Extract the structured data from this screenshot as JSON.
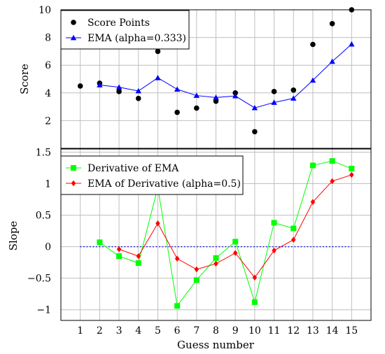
{
  "chart_data": [
    {
      "type": "line",
      "ylabel": "Score",
      "xlim": [
        0,
        16
      ],
      "ylim": [
        0,
        10
      ],
      "y_ticks": [
        2,
        4,
        6,
        8,
        10
      ],
      "grid": true,
      "legend_position": "top-left",
      "series": [
        {
          "name": "Score Points",
          "style": "scatter",
          "color": "#000000",
          "marker": "circle",
          "x": [
            1,
            2,
            3,
            4,
            5,
            6,
            7,
            8,
            9,
            10,
            11,
            12,
            13,
            14,
            15
          ],
          "values": [
            4.5,
            4.7,
            4.1,
            3.6,
            7.0,
            2.6,
            2.9,
            3.4,
            4.0,
            1.2,
            4.1,
            4.2,
            7.5,
            9.0,
            10.0
          ]
        },
        {
          "name": "EMA (alpha=0.333)",
          "style": "line",
          "color": "#0000ff",
          "marker": "triangle",
          "x": [
            2,
            3,
            4,
            5,
            6,
            7,
            8,
            9,
            10,
            11,
            12,
            13,
            14,
            15
          ],
          "values": [
            4.57,
            4.41,
            4.14,
            5.09,
            4.26,
            3.81,
            3.67,
            3.78,
            2.92,
            3.31,
            3.61,
            4.91,
            6.27,
            7.52
          ]
        }
      ]
    },
    {
      "type": "line",
      "xlabel": "Guess number",
      "ylabel": "Slope",
      "xlim": [
        0,
        16
      ],
      "ylim": [
        -1.17,
        1.55
      ],
      "x_ticks": [
        1,
        2,
        3,
        4,
        5,
        6,
        7,
        8,
        9,
        10,
        11,
        12,
        13,
        14,
        15
      ],
      "y_ticks": [
        -1,
        -0.5,
        0,
        0.5,
        1,
        1.5
      ],
      "y_tick_labels": [
        "−1",
        "−0.5",
        "0",
        "0.5",
        "1",
        "1.5"
      ],
      "grid": true,
      "legend_position": "top-left",
      "reference_line": {
        "y": 0,
        "x_from": 1,
        "x_to": 15,
        "color": "#0000ff",
        "style": "dotted"
      },
      "series": [
        {
          "name": "Derivative of EMA",
          "style": "line",
          "color": "#00ff00",
          "marker": "square",
          "x": [
            2,
            3,
            4,
            5,
            6,
            7,
            8,
            9,
            10,
            11,
            12,
            13,
            14,
            15
          ],
          "values": [
            0.07,
            -0.15,
            -0.26,
            0.94,
            -0.94,
            -0.53,
            -0.18,
            0.08,
            -0.88,
            0.38,
            0.29,
            1.29,
            1.36,
            1.24
          ]
        },
        {
          "name": "EMA of Derivative (alpha=0.5)",
          "style": "line",
          "color": "#ff0000",
          "marker": "diamond",
          "x": [
            3,
            4,
            5,
            6,
            7,
            8,
            9,
            10,
            11,
            12,
            13,
            14,
            15
          ],
          "values": [
            -0.04,
            -0.15,
            0.37,
            -0.19,
            -0.36,
            -0.27,
            -0.1,
            -0.49,
            -0.06,
            0.11,
            0.71,
            1.04,
            1.14
          ]
        }
      ]
    }
  ]
}
